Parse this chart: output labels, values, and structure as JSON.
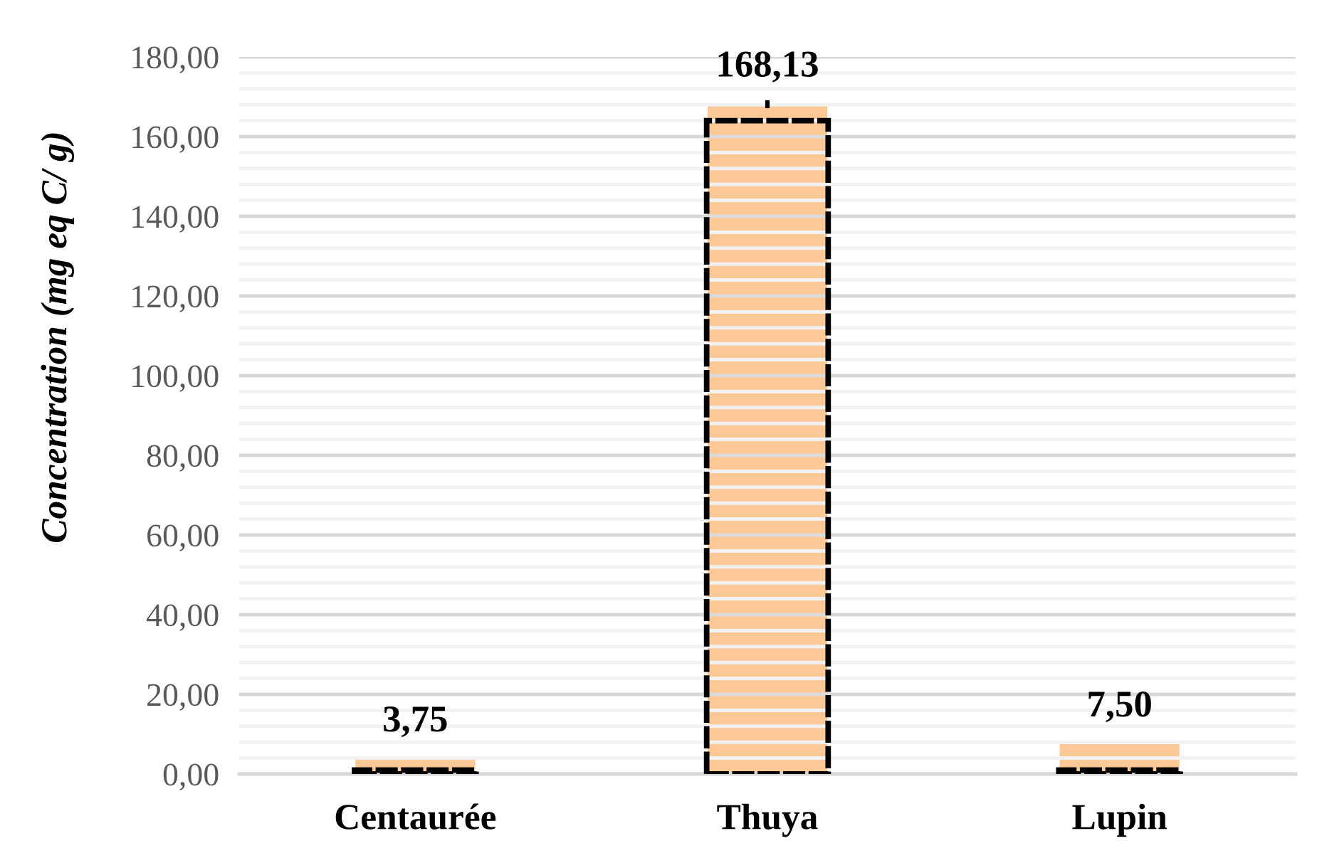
{
  "chart_data": {
    "type": "bar",
    "ylabel": "Concentration (mg eq C/ g)",
    "categories": [
      "Centaurée",
      "Thuya",
      "Lupin"
    ],
    "series": [
      {
        "color": "#fcc996",
        "values": [
          3.75,
          168.13,
          7.5
        ],
        "errors": [
          null,
          1,
          null
        ],
        "value_labels": [
          "3,75",
          "168,13",
          "7,50"
        ]
      },
      {
        "color": "#000000",
        "values": [
          1,
          164,
          1
        ],
        "line_style": "dashed"
      }
    ],
    "ylim": [
      0,
      180
    ],
    "yticks": [
      {
        "value": 0,
        "label": "0,00"
      },
      {
        "value": 20,
        "label": "20,00"
      },
      {
        "value": 40,
        "label": "40,00"
      },
      {
        "value": 60,
        "label": "60,00"
      },
      {
        "value": 80,
        "label": "80,00"
      },
      {
        "value": 100,
        "label": "100,00"
      },
      {
        "value": 120,
        "label": "120,00"
      },
      {
        "value": 140,
        "label": "140,00"
      },
      {
        "value": 160,
        "label": "160,00"
      },
      {
        "value": 180,
        "label": "180,00"
      }
    ],
    "grid": "y"
  }
}
